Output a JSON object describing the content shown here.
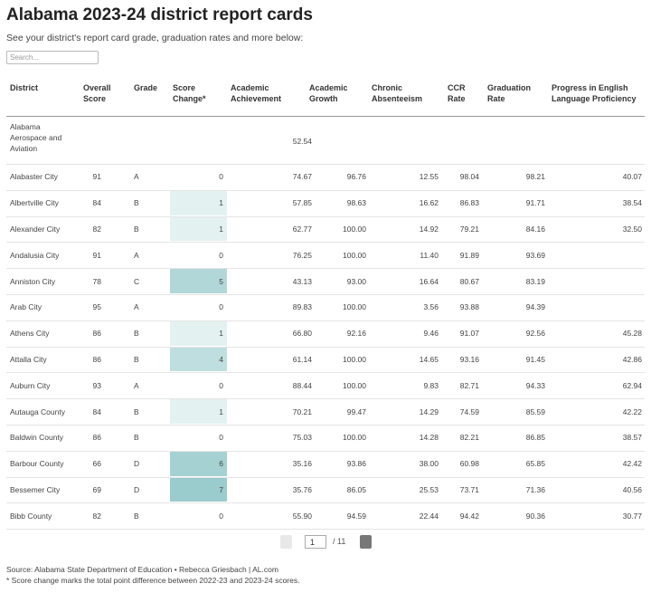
{
  "header": {
    "title": "Alabama 2023-24 district report cards",
    "subtitle": "See your district's report card grade, graduation rates and more below:",
    "search_placeholder": "Search..."
  },
  "table": {
    "columns": [
      "District",
      "Overall Score",
      "Grade",
      "Score Change*",
      "Academic Achievement",
      "Academic Growth",
      "Chronic Absenteeism",
      "CCR Rate",
      "Graduation Rate",
      "Progress in English Language Proficiency"
    ],
    "rows": [
      [
        "Alabama Aerospace and Aviation",
        null,
        null,
        null,
        "52.54",
        null,
        null,
        null,
        null,
        null
      ],
      [
        "Alabaster City",
        "91",
        "A",
        "0",
        "74.67",
        "96.76",
        "12.55",
        "98.04",
        "98.21",
        "40.07"
      ],
      [
        "Albertville City",
        "84",
        "B",
        "1",
        "57.85",
        "98.63",
        "16.62",
        "86.83",
        "91.71",
        "38.54"
      ],
      [
        "Alexander City",
        "82",
        "B",
        "1",
        "62.77",
        "100.00",
        "14.92",
        "79.21",
        "84.16",
        "32.50"
      ],
      [
        "Andalusia City",
        "91",
        "A",
        "0",
        "76.25",
        "100.00",
        "11.40",
        "91.89",
        "93.69",
        null
      ],
      [
        "Anniston City",
        "78",
        "C",
        "5",
        "43.13",
        "93.00",
        "16.64",
        "80.67",
        "83.19",
        null
      ],
      [
        "Arab City",
        "95",
        "A",
        "0",
        "89.83",
        "100.00",
        "3.56",
        "93.88",
        "94.39",
        null
      ],
      [
        "Athens City",
        "86",
        "B",
        "1",
        "66.80",
        "92.16",
        "9.46",
        "91.07",
        "92.56",
        "45.28"
      ],
      [
        "Attalla City",
        "86",
        "B",
        "4",
        "61.14",
        "100.00",
        "14.65",
        "93.16",
        "91.45",
        "42.86"
      ],
      [
        "Auburn City",
        "93",
        "A",
        "0",
        "88.44",
        "100.00",
        "9.83",
        "82.71",
        "94.33",
        "62.94"
      ],
      [
        "Autauga County",
        "84",
        "B",
        "1",
        "70.21",
        "99.47",
        "14.29",
        "74.59",
        "85.59",
        "42.22"
      ],
      [
        "Baldwin County",
        "86",
        "B",
        "0",
        "75.03",
        "100.00",
        "14.28",
        "82.21",
        "86.85",
        "38.57"
      ],
      [
        "Barbour County",
        "66",
        "D",
        "6",
        "35.16",
        "93.86",
        "38.00",
        "60.98",
        "65.85",
        "42.42"
      ],
      [
        "Bessemer City",
        "69",
        "D",
        "7",
        "35.76",
        "86.05",
        "25.53",
        "73.71",
        "71.36",
        "40.56"
      ],
      [
        "Bibb County",
        "82",
        "B",
        "0",
        "55.90",
        "94.59",
        "22.44",
        "94.42",
        "90.36",
        "30.77"
      ]
    ]
  },
  "pagination": {
    "current": "1",
    "total": "/ 11"
  },
  "footer": {
    "source": "Source: Alabama State Department of Education • Rebecca Griesbach | AL.com",
    "note": "* Score change marks the total point difference between 2022-23 and 2023-24 scores."
  }
}
